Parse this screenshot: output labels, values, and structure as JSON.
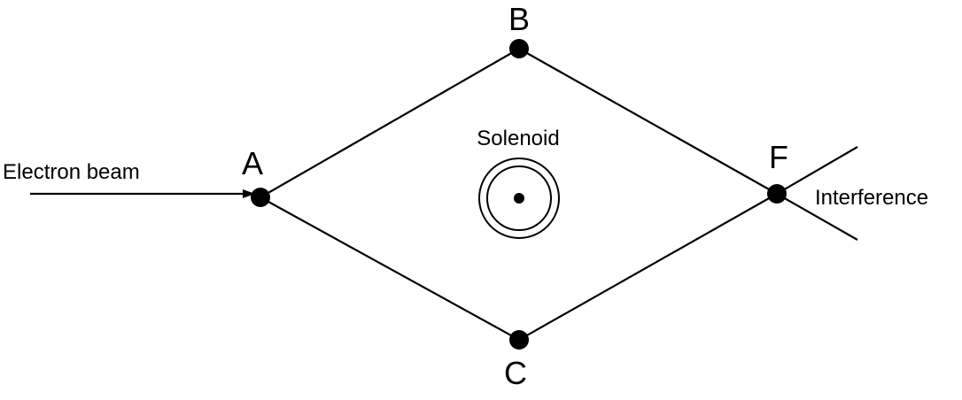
{
  "diagram": {
    "nodes": {
      "a": "A",
      "b": "B",
      "c": "C",
      "f": "F"
    },
    "labels": {
      "beam": "Electron beam",
      "solenoid": "Solenoid",
      "interference": "Interference"
    }
  }
}
